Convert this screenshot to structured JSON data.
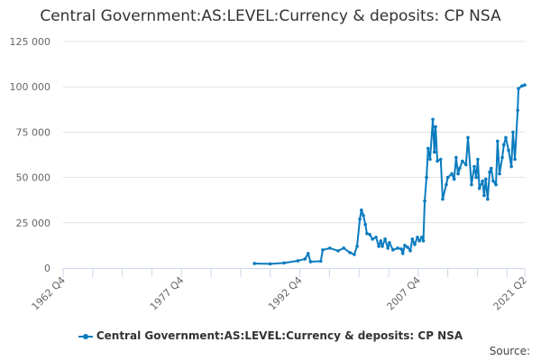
{
  "chart_data": {
    "type": "line",
    "title": "Central Government:AS:LEVEL:Currency & deposits: CP NSA",
    "ylim": [
      0,
      125000
    ],
    "y_ticks": [
      "0",
      "25 000",
      "50 000",
      "75 000",
      "100 000",
      "125 000"
    ],
    "y_tick_values": [
      0,
      25000,
      50000,
      75000,
      100000,
      125000
    ],
    "x_range": [
      "1962 Q4",
      "2021 Q2"
    ],
    "x_tick_labels": [
      "1962 Q4",
      "1977 Q4",
      "1992 Q4",
      "2007 Q4",
      "2021 Q2"
    ],
    "grid": "horizontal",
    "legend": "bottom",
    "color": "#0a7bbf",
    "series": [
      {
        "name": "Central Government:AS:LEVEL:Currency & deposits: CP NSA",
        "points": [
          [
            1987.0,
            2500
          ],
          [
            1989.0,
            2300
          ],
          [
            1990.75,
            2800
          ],
          [
            1992.5,
            4000
          ],
          [
            1993.4,
            5000
          ],
          [
            1993.8,
            8000
          ],
          [
            1994.1,
            3500
          ],
          [
            1995.4,
            3800
          ],
          [
            1995.65,
            10000
          ],
          [
            1996.55,
            11000
          ],
          [
            1997.6,
            9500
          ],
          [
            1998.3,
            11000
          ],
          [
            1999.1,
            8500
          ],
          [
            1999.65,
            7500
          ],
          [
            2000.0,
            12000
          ],
          [
            2000.35,
            27000
          ],
          [
            2000.55,
            32000
          ],
          [
            2000.8,
            29000
          ],
          [
            2001.05,
            24000
          ],
          [
            2001.25,
            19000
          ],
          [
            2001.6,
            18500
          ],
          [
            2001.95,
            16000
          ],
          [
            2002.4,
            17000
          ],
          [
            2002.75,
            12000
          ],
          [
            2003.0,
            15000
          ],
          [
            2003.2,
            12000
          ],
          [
            2003.55,
            16000
          ],
          [
            2003.9,
            11000
          ],
          [
            2004.1,
            14000
          ],
          [
            2004.55,
            10000
          ],
          [
            2005.15,
            11000
          ],
          [
            2005.6,
            10500
          ],
          [
            2005.8,
            8000
          ],
          [
            2006.05,
            12500
          ],
          [
            2006.4,
            11500
          ],
          [
            2006.75,
            9500
          ],
          [
            2007.0,
            16000
          ],
          [
            2007.3,
            13000
          ],
          [
            2007.65,
            17000
          ],
          [
            2007.9,
            15000
          ],
          [
            2008.2,
            17000
          ],
          [
            2008.4,
            15000
          ],
          [
            2008.57,
            37000
          ],
          [
            2008.8,
            50000
          ],
          [
            2009.0,
            66000
          ],
          [
            2009.25,
            60000
          ],
          [
            2009.6,
            82000
          ],
          [
            2009.8,
            64000
          ],
          [
            2009.95,
            78000
          ],
          [
            2010.17,
            59000
          ],
          [
            2010.6,
            60000
          ],
          [
            2010.85,
            38000
          ],
          [
            2011.3,
            46000
          ],
          [
            2011.5,
            50000
          ],
          [
            2012.0,
            52000
          ],
          [
            2012.3,
            49000
          ],
          [
            2012.55,
            61000
          ],
          [
            2012.8,
            52000
          ],
          [
            2013.0,
            55000
          ],
          [
            2013.35,
            59000
          ],
          [
            2013.8,
            57000
          ],
          [
            2014.05,
            72000
          ],
          [
            2014.5,
            46000
          ],
          [
            2014.85,
            56000
          ],
          [
            2015.1,
            50000
          ],
          [
            2015.3,
            60000
          ],
          [
            2015.5,
            44000
          ],
          [
            2015.9,
            48000
          ],
          [
            2016.1,
            40000
          ],
          [
            2016.3,
            49000
          ],
          [
            2016.55,
            38000
          ],
          [
            2016.8,
            53000
          ],
          [
            2017.0,
            55000
          ],
          [
            2017.25,
            48000
          ],
          [
            2017.6,
            46000
          ],
          [
            2017.8,
            70000
          ],
          [
            2018.05,
            52000
          ],
          [
            2018.4,
            61000
          ],
          [
            2018.6,
            68000
          ],
          [
            2018.85,
            72000
          ],
          [
            2019.2,
            65000
          ],
          [
            2019.55,
            56000
          ],
          [
            2019.75,
            75000
          ],
          [
            2020.0,
            60000
          ],
          [
            2020.35,
            87000
          ],
          [
            2020.45,
            99000
          ],
          [
            2020.9,
            100500
          ],
          [
            2021.25,
            101000
          ]
        ]
      }
    ]
  },
  "legend_label": "Central Government:AS:LEVEL:Currency & deposits: CP NSA",
  "source_label": "Source:"
}
